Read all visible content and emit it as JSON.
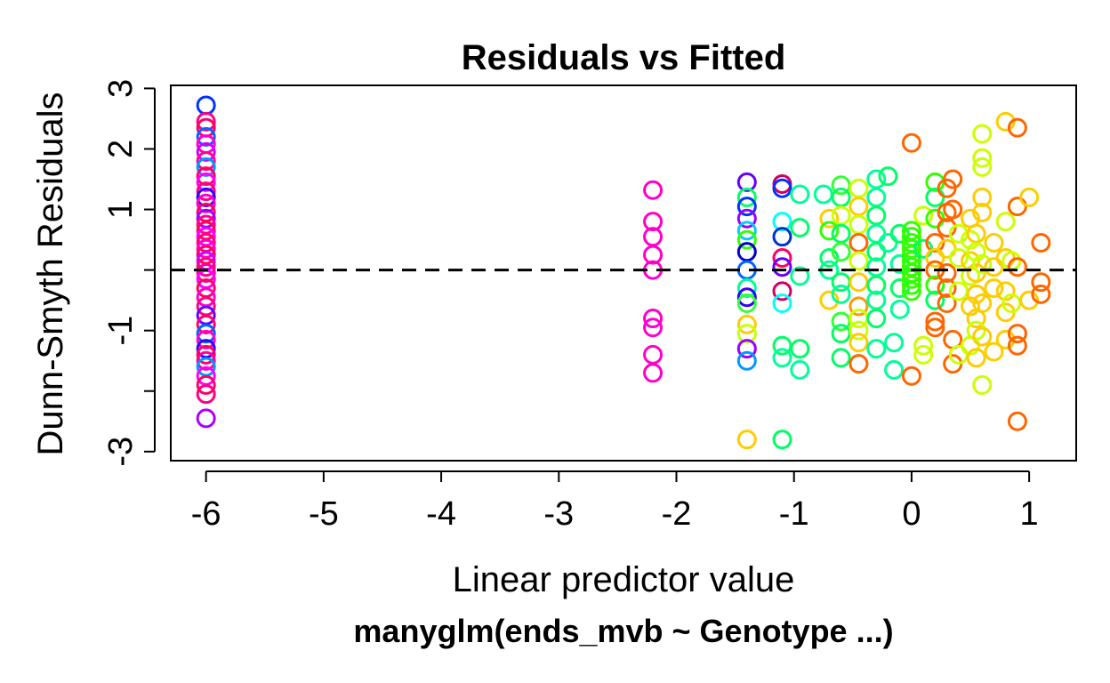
{
  "chart_data": {
    "type": "scatter",
    "title": "Residuals vs Fitted",
    "xlabel": "Linear predictor value",
    "ylabel": "Dunn-Smyth Residuals",
    "subtitle": "manyglm(ends_mvb ~ Genotype ...)",
    "xlim": [
      -6.3,
      1.4
    ],
    "ylim": [
      -3.15,
      3.05
    ],
    "x_ticks": [
      {
        "value": -6,
        "label": "-6"
      },
      {
        "value": -5,
        "label": "-5"
      },
      {
        "value": -4,
        "label": "-4"
      },
      {
        "value": -3,
        "label": "-3"
      },
      {
        "value": -2,
        "label": "-2"
      },
      {
        "value": -1,
        "label": "-1"
      },
      {
        "value": 0,
        "label": "0"
      },
      {
        "value": 1,
        "label": "1"
      }
    ],
    "y_ticks": [
      {
        "value": 3,
        "label": "3"
      },
      {
        "value": 2,
        "label": "2"
      },
      {
        "value": 1,
        "label": "1"
      },
      {
        "value": 0,
        "label": ""
      },
      {
        "value": -1,
        "label": "-1"
      },
      {
        "value": -2,
        "label": ""
      },
      {
        "value": -3,
        "label": "-3"
      }
    ],
    "reference_line": {
      "y": 0,
      "style": "dashed",
      "color": "#000000"
    },
    "grid": false,
    "marker": "open-circle",
    "points": [
      {
        "x": -6.0,
        "y": 2.72,
        "color": "#0033ff"
      },
      {
        "x": -6.0,
        "y": 2.45,
        "color": "#ff0080"
      },
      {
        "x": -6.0,
        "y": 2.35,
        "color": "#ff0066"
      },
      {
        "x": -6.0,
        "y": 2.2,
        "color": "#0066ff"
      },
      {
        "x": -6.0,
        "y": 2.08,
        "color": "#ff00cc"
      },
      {
        "x": -6.0,
        "y": 1.95,
        "color": "#cc00ff"
      },
      {
        "x": -6.0,
        "y": 1.8,
        "color": "#ff0099"
      },
      {
        "x": -6.0,
        "y": 1.7,
        "color": "#0099ff"
      },
      {
        "x": -6.0,
        "y": 1.55,
        "color": "#ff0066"
      },
      {
        "x": -6.0,
        "y": 1.45,
        "color": "#ff00ff"
      },
      {
        "x": -6.0,
        "y": 1.3,
        "color": "#ff0080"
      },
      {
        "x": -6.0,
        "y": 1.2,
        "color": "#3300ff"
      },
      {
        "x": -6.0,
        "y": 1.1,
        "color": "#ff00cc"
      },
      {
        "x": -6.0,
        "y": 0.95,
        "color": "#ff0066"
      },
      {
        "x": -6.0,
        "y": 0.85,
        "color": "#9900ff"
      },
      {
        "x": -6.0,
        "y": 0.75,
        "color": "#ff0099"
      },
      {
        "x": -6.0,
        "y": 0.65,
        "color": "#ff0066"
      },
      {
        "x": -6.0,
        "y": 0.55,
        "color": "#ff00ff"
      },
      {
        "x": -6.0,
        "y": 0.45,
        "color": "#ff0080"
      },
      {
        "x": -6.0,
        "y": 0.35,
        "color": "#ff00cc"
      },
      {
        "x": -6.0,
        "y": 0.25,
        "color": "#ff0066"
      },
      {
        "x": -6.0,
        "y": 0.15,
        "color": "#cc00ff"
      },
      {
        "x": -6.0,
        "y": 0.05,
        "color": "#ff0080"
      },
      {
        "x": -6.0,
        "y": -0.05,
        "color": "#ff0099"
      },
      {
        "x": -6.0,
        "y": -0.15,
        "color": "#ff00ff"
      },
      {
        "x": -6.0,
        "y": -0.3,
        "color": "#ff0066"
      },
      {
        "x": -6.0,
        "y": -0.45,
        "color": "#ff00cc"
      },
      {
        "x": -6.0,
        "y": -0.6,
        "color": "#ff0080"
      },
      {
        "x": -6.0,
        "y": -0.75,
        "color": "#6600ff"
      },
      {
        "x": -6.0,
        "y": -0.9,
        "color": "#ff0066"
      },
      {
        "x": -6.0,
        "y": -1.05,
        "color": "#0066ff"
      },
      {
        "x": -6.0,
        "y": -1.15,
        "color": "#ff00cc"
      },
      {
        "x": -6.0,
        "y": -1.3,
        "color": "#3300ff"
      },
      {
        "x": -6.0,
        "y": -1.4,
        "color": "#ff0066"
      },
      {
        "x": -6.0,
        "y": -1.5,
        "color": "#ff0099"
      },
      {
        "x": -6.0,
        "y": -1.6,
        "color": "#0099ff"
      },
      {
        "x": -6.0,
        "y": -1.75,
        "color": "#ff00ff"
      },
      {
        "x": -6.0,
        "y": -1.9,
        "color": "#ff0066"
      },
      {
        "x": -6.0,
        "y": -2.05,
        "color": "#ff0080"
      },
      {
        "x": -6.0,
        "y": -2.45,
        "color": "#aa00ff"
      },
      {
        "x": -2.2,
        "y": 1.32,
        "color": "#ff00cc"
      },
      {
        "x": -2.2,
        "y": 0.8,
        "color": "#ff00cc"
      },
      {
        "x": -2.2,
        "y": 0.55,
        "color": "#ff00cc"
      },
      {
        "x": -2.2,
        "y": 0.25,
        "color": "#ff00cc"
      },
      {
        "x": -2.2,
        "y": 0.0,
        "color": "#ff00cc"
      },
      {
        "x": -2.2,
        "y": -0.8,
        "color": "#ff00cc"
      },
      {
        "x": -2.2,
        "y": -0.95,
        "color": "#ff00cc"
      },
      {
        "x": -2.2,
        "y": -1.4,
        "color": "#ff00cc"
      },
      {
        "x": -2.2,
        "y": -1.7,
        "color": "#ff00cc"
      },
      {
        "x": -1.4,
        "y": 1.45,
        "color": "#6600ff"
      },
      {
        "x": -1.4,
        "y": 1.2,
        "color": "#00ff66"
      },
      {
        "x": -1.4,
        "y": 1.05,
        "color": "#0033ff"
      },
      {
        "x": -1.4,
        "y": 0.85,
        "color": "#9900ff"
      },
      {
        "x": -1.4,
        "y": 0.65,
        "color": "#00ccff"
      },
      {
        "x": -1.4,
        "y": 0.5,
        "color": "#33ff00"
      },
      {
        "x": -1.4,
        "y": 0.3,
        "color": "#0000cc"
      },
      {
        "x": -1.4,
        "y": 0.0,
        "color": "#0066ff"
      },
      {
        "x": -1.4,
        "y": -0.3,
        "color": "#00ff99"
      },
      {
        "x": -1.4,
        "y": -0.45,
        "color": "#3300ff"
      },
      {
        "x": -1.4,
        "y": -0.55,
        "color": "#33ff33"
      },
      {
        "x": -1.4,
        "y": -0.9,
        "color": "#ffcc00"
      },
      {
        "x": -1.4,
        "y": -1.05,
        "color": "#ccff00"
      },
      {
        "x": -1.4,
        "y": -1.3,
        "color": "#9900ff"
      },
      {
        "x": -1.4,
        "y": -1.5,
        "color": "#0099ff"
      },
      {
        "x": -1.4,
        "y": -2.8,
        "color": "#ffcc00"
      },
      {
        "x": -1.1,
        "y": 1.42,
        "color": "#cc0066"
      },
      {
        "x": -1.1,
        "y": 1.35,
        "color": "#0033ff"
      },
      {
        "x": -1.1,
        "y": 0.8,
        "color": "#00ffff"
      },
      {
        "x": -1.1,
        "y": 0.55,
        "color": "#0033cc"
      },
      {
        "x": -1.1,
        "y": 0.2,
        "color": "#ff0066"
      },
      {
        "x": -1.1,
        "y": 0.05,
        "color": "#6600ff"
      },
      {
        "x": -1.1,
        "y": -0.35,
        "color": "#cc0066"
      },
      {
        "x": -1.1,
        "y": -0.55,
        "color": "#00ffff"
      },
      {
        "x": -1.1,
        "y": -1.25,
        "color": "#00ff66"
      },
      {
        "x": -1.1,
        "y": -1.45,
        "color": "#00ff99"
      },
      {
        "x": -1.1,
        "y": -2.8,
        "color": "#00ff66"
      },
      {
        "x": -0.95,
        "y": 1.25,
        "color": "#00ff99"
      },
      {
        "x": -0.95,
        "y": 0.7,
        "color": "#00ff66"
      },
      {
        "x": -0.95,
        "y": -0.1,
        "color": "#00ff99"
      },
      {
        "x": -0.95,
        "y": -1.3,
        "color": "#00ff66"
      },
      {
        "x": -0.95,
        "y": -1.65,
        "color": "#00ff99"
      },
      {
        "x": -0.75,
        "y": 1.25,
        "color": "#00ff99"
      },
      {
        "x": -0.7,
        "y": 0.85,
        "color": "#ffcc00"
      },
      {
        "x": -0.7,
        "y": 0.65,
        "color": "#33ff00"
      },
      {
        "x": -0.7,
        "y": 0.2,
        "color": "#00ff66"
      },
      {
        "x": -0.7,
        "y": 0.0,
        "color": "#00ff99"
      },
      {
        "x": -0.7,
        "y": -0.5,
        "color": "#ffcc00"
      },
      {
        "x": -0.6,
        "y": 1.4,
        "color": "#33ff33"
      },
      {
        "x": -0.6,
        "y": 1.2,
        "color": "#00ff66"
      },
      {
        "x": -0.6,
        "y": 0.9,
        "color": "#ccff00"
      },
      {
        "x": -0.6,
        "y": 0.6,
        "color": "#00ff66"
      },
      {
        "x": -0.6,
        "y": 0.3,
        "color": "#33ff33"
      },
      {
        "x": -0.6,
        "y": -0.2,
        "color": "#00ff66"
      },
      {
        "x": -0.6,
        "y": -0.4,
        "color": "#00ff99"
      },
      {
        "x": -0.6,
        "y": -0.85,
        "color": "#33ff33"
      },
      {
        "x": -0.6,
        "y": -1.05,
        "color": "#00ff66"
      },
      {
        "x": -0.6,
        "y": -1.45,
        "color": "#00ff66"
      },
      {
        "x": -0.45,
        "y": 1.35,
        "color": "#ccff00"
      },
      {
        "x": -0.45,
        "y": 1.05,
        "color": "#ffcc00"
      },
      {
        "x": -0.45,
        "y": 0.75,
        "color": "#ccff00"
      },
      {
        "x": -0.45,
        "y": 0.45,
        "color": "#ff6600"
      },
      {
        "x": -0.45,
        "y": 0.15,
        "color": "#ccff00"
      },
      {
        "x": -0.45,
        "y": -0.2,
        "color": "#ffcc00"
      },
      {
        "x": -0.45,
        "y": -0.6,
        "color": "#ff9900"
      },
      {
        "x": -0.45,
        "y": -0.8,
        "color": "#ccff00"
      },
      {
        "x": -0.45,
        "y": -1.0,
        "color": "#ccff00"
      },
      {
        "x": -0.45,
        "y": -1.2,
        "color": "#ffcc00"
      },
      {
        "x": -0.45,
        "y": -1.55,
        "color": "#ff6600"
      },
      {
        "x": -0.3,
        "y": 1.5,
        "color": "#00ff99"
      },
      {
        "x": -0.3,
        "y": 1.2,
        "color": "#00ff99"
      },
      {
        "x": -0.3,
        "y": 0.9,
        "color": "#00ff66"
      },
      {
        "x": -0.3,
        "y": 0.6,
        "color": "#00ff99"
      },
      {
        "x": -0.3,
        "y": 0.3,
        "color": "#00ff66"
      },
      {
        "x": -0.3,
        "y": 0.05,
        "color": "#00ff99"
      },
      {
        "x": -0.3,
        "y": -0.25,
        "color": "#00ff66"
      },
      {
        "x": -0.3,
        "y": -0.5,
        "color": "#00ff99"
      },
      {
        "x": -0.3,
        "y": -0.8,
        "color": "#00ff66"
      },
      {
        "x": -0.3,
        "y": -1.3,
        "color": "#00ff99"
      },
      {
        "x": -0.2,
        "y": 1.55,
        "color": "#00ff66"
      },
      {
        "x": -0.2,
        "y": 0.45,
        "color": "#00ff99"
      },
      {
        "x": -0.15,
        "y": -1.2,
        "color": "#00ff99"
      },
      {
        "x": -0.15,
        "y": -1.65,
        "color": "#00ff99"
      },
      {
        "x": -0.1,
        "y": 0.6,
        "color": "#00ff66"
      },
      {
        "x": -0.1,
        "y": 0.1,
        "color": "#00ff99"
      },
      {
        "x": -0.1,
        "y": -0.3,
        "color": "#00ff66"
      },
      {
        "x": -0.1,
        "y": -0.65,
        "color": "#00ff99"
      },
      {
        "x": 0.0,
        "y": 2.1,
        "color": "#ff6600"
      },
      {
        "x": 0.0,
        "y": 0.65,
        "color": "#33ff00"
      },
      {
        "x": 0.0,
        "y": 0.55,
        "color": "#33ff00"
      },
      {
        "x": 0.0,
        "y": 0.45,
        "color": "#33ff00"
      },
      {
        "x": 0.0,
        "y": 0.35,
        "color": "#33ff00"
      },
      {
        "x": 0.0,
        "y": 0.25,
        "color": "#33ff00"
      },
      {
        "x": 0.0,
        "y": 0.15,
        "color": "#33ff00"
      },
      {
        "x": 0.0,
        "y": 0.05,
        "color": "#33ff00"
      },
      {
        "x": 0.0,
        "y": -0.05,
        "color": "#33ff00"
      },
      {
        "x": 0.0,
        "y": -0.15,
        "color": "#33ff00"
      },
      {
        "x": 0.0,
        "y": -0.25,
        "color": "#33ff00"
      },
      {
        "x": 0.0,
        "y": -0.35,
        "color": "#33ff00"
      },
      {
        "x": 0.0,
        "y": -1.75,
        "color": "#ff6600"
      },
      {
        "x": 0.1,
        "y": 0.9,
        "color": "#ccff00"
      },
      {
        "x": 0.1,
        "y": 0.35,
        "color": "#00ff66"
      },
      {
        "x": 0.1,
        "y": -1.25,
        "color": "#ccff00"
      },
      {
        "x": 0.1,
        "y": -1.4,
        "color": "#ccff00"
      },
      {
        "x": 0.2,
        "y": 1.45,
        "color": "#33ff00"
      },
      {
        "x": 0.2,
        "y": 1.2,
        "color": "#00ff66"
      },
      {
        "x": 0.2,
        "y": 0.85,
        "color": "#33ff00"
      },
      {
        "x": 0.2,
        "y": 0.45,
        "color": "#ff6600"
      },
      {
        "x": 0.2,
        "y": 0.2,
        "color": "#ffcc00"
      },
      {
        "x": 0.2,
        "y": 0.0,
        "color": "#ff6600"
      },
      {
        "x": 0.2,
        "y": -0.25,
        "color": "#33ff00"
      },
      {
        "x": 0.2,
        "y": -0.5,
        "color": "#00ff66"
      },
      {
        "x": 0.2,
        "y": -0.85,
        "color": "#ff6600"
      },
      {
        "x": 0.2,
        "y": -0.95,
        "color": "#ff6600"
      },
      {
        "x": 0.3,
        "y": 1.35,
        "color": "#ff6600"
      },
      {
        "x": 0.3,
        "y": 0.95,
        "color": "#ff6600"
      },
      {
        "x": 0.3,
        "y": 0.7,
        "color": "#ff6600"
      },
      {
        "x": 0.3,
        "y": 0.35,
        "color": "#ffcc00"
      },
      {
        "x": 0.3,
        "y": -0.05,
        "color": "#ff6600"
      },
      {
        "x": 0.3,
        "y": -0.3,
        "color": "#ff6600"
      },
      {
        "x": 0.3,
        "y": -0.55,
        "color": "#ff6600"
      },
      {
        "x": 0.35,
        "y": 1.5,
        "color": "#ff6600"
      },
      {
        "x": 0.35,
        "y": 1.0,
        "color": "#ff6600"
      },
      {
        "x": 0.35,
        "y": -1.15,
        "color": "#ff6600"
      },
      {
        "x": 0.35,
        "y": -1.55,
        "color": "#ff6600"
      },
      {
        "x": 0.4,
        "y": 0.6,
        "color": "#ccff00"
      },
      {
        "x": 0.4,
        "y": 0.2,
        "color": "#ccff00"
      },
      {
        "x": 0.4,
        "y": -0.35,
        "color": "#ccff00"
      },
      {
        "x": 0.4,
        "y": -1.4,
        "color": "#ccff00"
      },
      {
        "x": 0.5,
        "y": 0.85,
        "color": "#ffcc00"
      },
      {
        "x": 0.5,
        "y": 0.5,
        "color": "#ccff00"
      },
      {
        "x": 0.5,
        "y": 0.15,
        "color": "#ffcc00"
      },
      {
        "x": 0.5,
        "y": -0.1,
        "color": "#ccff00"
      },
      {
        "x": 0.5,
        "y": -0.6,
        "color": "#ffcc00"
      },
      {
        "x": 0.5,
        "y": -1.25,
        "color": "#ccff00"
      },
      {
        "x": 0.55,
        "y": 0.6,
        "color": "#ffcc00"
      },
      {
        "x": 0.55,
        "y": 0.3,
        "color": "#ccff00"
      },
      {
        "x": 0.55,
        "y": -0.05,
        "color": "#ffcc00"
      },
      {
        "x": 0.55,
        "y": -0.4,
        "color": "#ffcc00"
      },
      {
        "x": 0.55,
        "y": -0.8,
        "color": "#ffcc00"
      },
      {
        "x": 0.55,
        "y": -1.0,
        "color": "#ccff00"
      },
      {
        "x": 0.55,
        "y": -1.45,
        "color": "#ffcc00"
      },
      {
        "x": 0.6,
        "y": 2.25,
        "color": "#ccff00"
      },
      {
        "x": 0.6,
        "y": 1.85,
        "color": "#ccff00"
      },
      {
        "x": 0.6,
        "y": 1.7,
        "color": "#ccff00"
      },
      {
        "x": 0.6,
        "y": 1.2,
        "color": "#ffcc00"
      },
      {
        "x": 0.6,
        "y": 0.95,
        "color": "#ffcc00"
      },
      {
        "x": 0.6,
        "y": 0.1,
        "color": "#ccff00"
      },
      {
        "x": 0.6,
        "y": -0.55,
        "color": "#ffcc00"
      },
      {
        "x": 0.6,
        "y": -1.1,
        "color": "#ffcc00"
      },
      {
        "x": 0.6,
        "y": -1.9,
        "color": "#ccff00"
      },
      {
        "x": 0.7,
        "y": 0.45,
        "color": "#ffcc00"
      },
      {
        "x": 0.7,
        "y": 0.05,
        "color": "#ffcc00"
      },
      {
        "x": 0.7,
        "y": -0.3,
        "color": "#ffcc00"
      },
      {
        "x": 0.7,
        "y": -1.35,
        "color": "#ffcc00"
      },
      {
        "x": 0.8,
        "y": 2.45,
        "color": "#ffcc00"
      },
      {
        "x": 0.8,
        "y": 0.8,
        "color": "#ccff00"
      },
      {
        "x": 0.8,
        "y": 0.2,
        "color": "#ffcc00"
      },
      {
        "x": 0.8,
        "y": -0.35,
        "color": "#ffcc00"
      },
      {
        "x": 0.8,
        "y": -0.7,
        "color": "#ffcc00"
      },
      {
        "x": 0.8,
        "y": -1.15,
        "color": "#ffcc00"
      },
      {
        "x": 0.85,
        "y": 0.15,
        "color": "#ccff00"
      },
      {
        "x": 0.85,
        "y": -0.55,
        "color": "#ccff00"
      },
      {
        "x": 0.9,
        "y": 2.35,
        "color": "#ff6600"
      },
      {
        "x": 0.9,
        "y": 1.05,
        "color": "#ff6600"
      },
      {
        "x": 0.9,
        "y": 0.05,
        "color": "#ff6600"
      },
      {
        "x": 0.9,
        "y": -1.05,
        "color": "#ff6600"
      },
      {
        "x": 0.9,
        "y": -1.25,
        "color": "#ff6600"
      },
      {
        "x": 0.9,
        "y": -2.5,
        "color": "#ff6600"
      },
      {
        "x": 1.0,
        "y": 1.2,
        "color": "#ffcc00"
      },
      {
        "x": 1.0,
        "y": -0.5,
        "color": "#ffcc00"
      },
      {
        "x": 1.1,
        "y": 0.45,
        "color": "#ff6600"
      },
      {
        "x": 1.1,
        "y": -0.2,
        "color": "#ff6600"
      },
      {
        "x": 1.1,
        "y": -0.4,
        "color": "#ff6600"
      }
    ]
  }
}
